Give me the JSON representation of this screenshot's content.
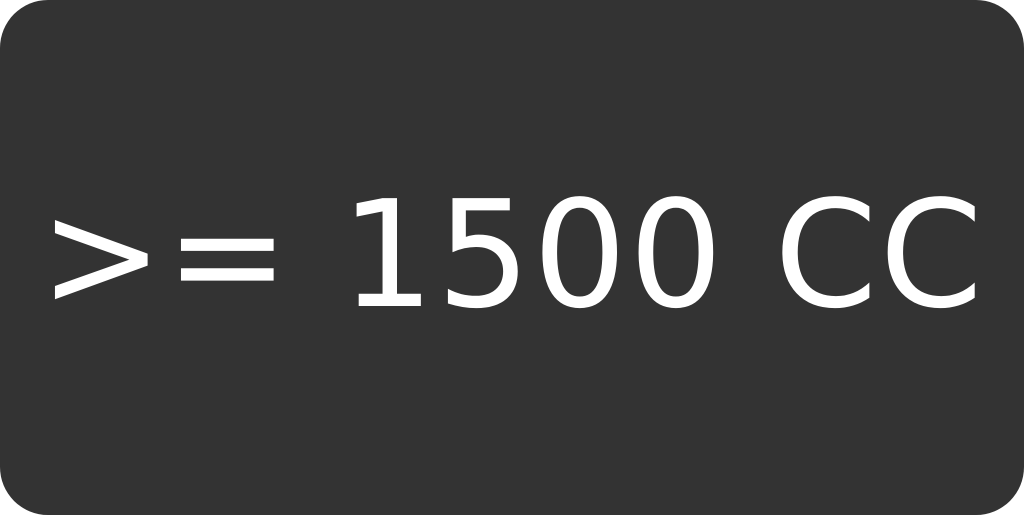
{
  "badge": {
    "label": ">= 1500 CC",
    "background_color": "#333333",
    "text_color": "#ffffff"
  }
}
